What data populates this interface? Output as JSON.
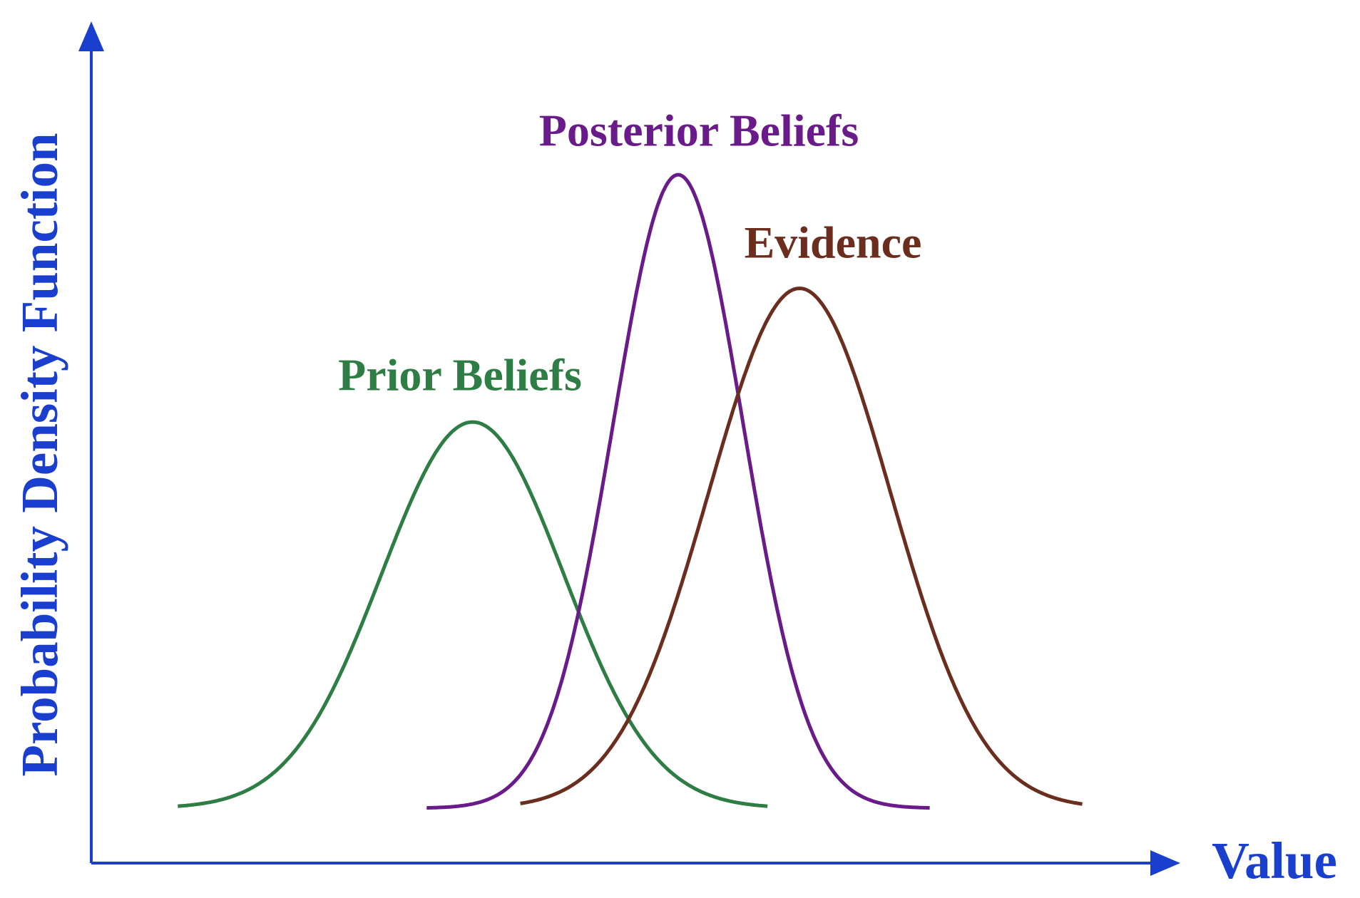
{
  "axes": {
    "y_label": "Probability Density Function",
    "x_label": "Value"
  },
  "curves": [
    {
      "label": "Prior Beliefs"
    },
    {
      "label": "Posterior Beliefs"
    },
    {
      "label": "Evidence"
    }
  ]
}
